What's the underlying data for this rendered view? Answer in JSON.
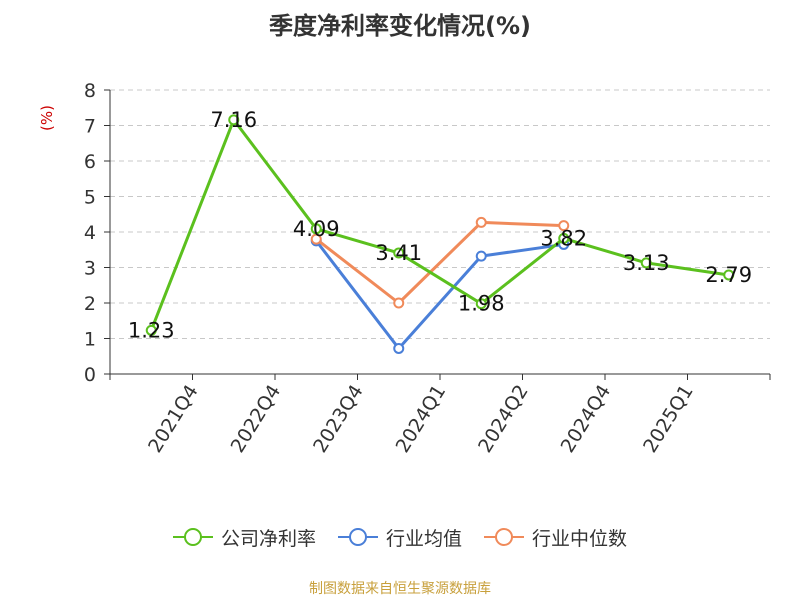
{
  "title": "季度净利率变化情况(%)",
  "source": "制图数据来自恒生聚源数据库",
  "chart_data": {
    "type": "line",
    "title": "季度净利率变化情况(%)",
    "xlabel": "",
    "ylabel": "(%)",
    "categories": [
      "",
      "2021Q4",
      "2022Q4",
      "2023Q4",
      "2024Q1",
      "2024Q2",
      "2024Q4",
      "2025Q1"
    ],
    "ylim": [
      0,
      8
    ],
    "yticks": [
      0,
      1,
      2,
      3,
      4,
      5,
      6,
      7,
      8
    ],
    "grid": true,
    "legend_position": "bottom",
    "series": [
      {
        "name": "公司净利率",
        "color": "#5bc01e",
        "values": [
          1.23,
          7.16,
          4.09,
          3.41,
          1.98,
          3.82,
          3.13,
          2.79
        ],
        "labels": [
          "1.23",
          "7.16",
          "4.09",
          "3.41",
          "1.98",
          "3.82",
          "3.13",
          "2.79"
        ]
      },
      {
        "name": "行业均值",
        "color": "#4a7fd8",
        "values": [
          null,
          null,
          3.75,
          0.72,
          3.32,
          3.65,
          null,
          null
        ]
      },
      {
        "name": "行业中位数",
        "color": "#f08a5a",
        "values": [
          null,
          null,
          3.8,
          2.0,
          4.27,
          4.18,
          null,
          null
        ]
      }
    ]
  }
}
